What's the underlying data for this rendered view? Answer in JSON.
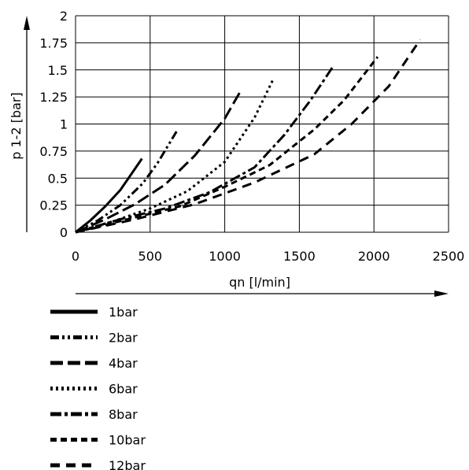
{
  "chart_data": {
    "type": "line",
    "xlabel": "qn [l/min]",
    "ylabel": "p 1-2 [bar]",
    "xlim": [
      0,
      2500
    ],
    "ylim": [
      0,
      2
    ],
    "xticks": [
      "0",
      "500",
      "1000",
      "1500",
      "2000",
      "2500"
    ],
    "yticks": [
      "0",
      "0.25",
      "0.5",
      "0.75",
      "1",
      "1.25",
      "1.5",
      "1.75",
      "2"
    ],
    "grid": true,
    "legend_position": "bottom-left",
    "series": [
      {
        "name": "1bar",
        "dash": "solid",
        "x": [
          0,
          100,
          200,
          300,
          445
        ],
        "y": [
          0,
          0.11,
          0.24,
          0.39,
          0.68
        ]
      },
      {
        "name": "2bar",
        "dash": "dash-dot-dot",
        "x": [
          0,
          150,
          300,
          450,
          550,
          685
        ],
        "y": [
          0,
          0.11,
          0.25,
          0.45,
          0.64,
          0.95
        ]
      },
      {
        "name": "4bar",
        "dash": "long-dash",
        "x": [
          0,
          200,
          400,
          600,
          800,
          1000,
          1100
        ],
        "y": [
          0,
          0.12,
          0.26,
          0.44,
          0.71,
          1.05,
          1.29
        ]
      },
      {
        "name": "6bar",
        "dash": "dotted",
        "x": [
          0,
          250,
          500,
          750,
          1000,
          1200,
          1320
        ],
        "y": [
          0,
          0.1,
          0.22,
          0.38,
          0.65,
          1.06,
          1.4
        ]
      },
      {
        "name": "8bar",
        "dash": "long-dash-dot",
        "x": [
          0,
          300,
          600,
          900,
          1200,
          1400,
          1575,
          1730
        ],
        "y": [
          0,
          0.12,
          0.22,
          0.37,
          0.6,
          0.9,
          1.22,
          1.54
        ]
      },
      {
        "name": "10bar",
        "dash": "dash",
        "x": [
          0,
          350,
          700,
          1000,
          1300,
          1600,
          1800,
          2025
        ],
        "y": [
          0,
          0.12,
          0.24,
          0.42,
          0.62,
          0.95,
          1.22,
          1.62
        ]
      },
      {
        "name": "12bar",
        "dash": "long-dash-wide",
        "x": [
          0,
          400,
          800,
          1200,
          1600,
          1850,
          2100,
          2310
        ],
        "y": [
          0,
          0.12,
          0.26,
          0.46,
          0.72,
          1.0,
          1.35,
          1.78
        ]
      }
    ]
  }
}
